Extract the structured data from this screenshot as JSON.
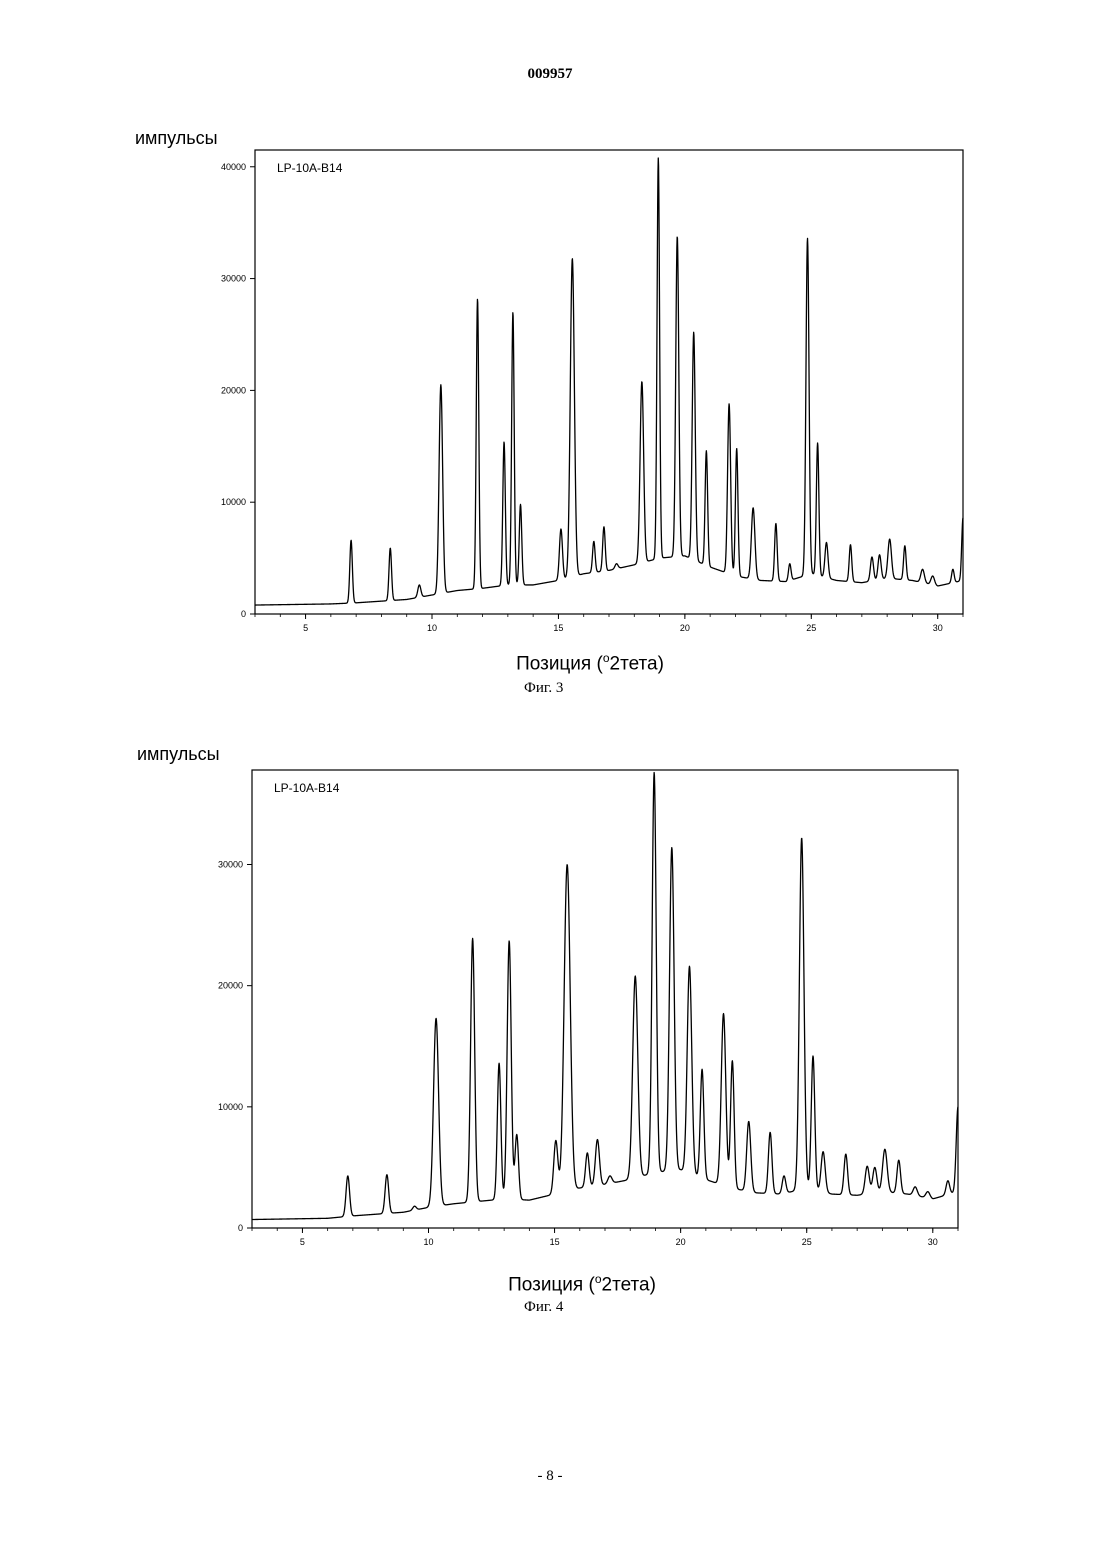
{
  "document": {
    "number": "009957",
    "page": "- 8 -"
  },
  "chart_data": [
    {
      "type": "line",
      "ylabel": "импульсы",
      "xlabel": "Позиция (°2тета)",
      "xlabel_pre": "Позиция (",
      "xlabel_sup": "o",
      "xlabel_post": "2тета)",
      "legend": "LP-10A-B14",
      "caption": "Фиг. 3",
      "xlim": [
        3,
        31
      ],
      "ylim": [
        0,
        41500
      ],
      "xticks": [
        5,
        10,
        15,
        20,
        25,
        30
      ],
      "xtick_labels": [
        "5",
        "10",
        "15",
        "20",
        "25",
        "30"
      ],
      "yticks": [
        0,
        10000,
        20000,
        30000,
        40000
      ],
      "ytick_labels": [
        "0",
        "10000",
        "20000",
        "30000",
        "40000"
      ],
      "baseline": [
        [
          3,
          800
        ],
        [
          6,
          900
        ],
        [
          7,
          1000
        ],
        [
          9,
          1300
        ],
        [
          10,
          1700
        ],
        [
          11,
          2100
        ],
        [
          12,
          2300
        ],
        [
          13,
          2600
        ],
        [
          14,
          2600
        ],
        [
          15,
          3000
        ],
        [
          16,
          3600
        ],
        [
          17,
          3900
        ],
        [
          18,
          4400
        ],
        [
          19,
          5000
        ],
        [
          20,
          5200
        ],
        [
          21,
          4200
        ],
        [
          22,
          3400
        ],
        [
          23,
          3000
        ],
        [
          24,
          2900
        ],
        [
          25,
          3600
        ],
        [
          26,
          3000
        ],
        [
          27,
          2800
        ],
        [
          28,
          3200
        ],
        [
          29,
          3000
        ],
        [
          30,
          2500
        ],
        [
          31,
          3000
        ]
      ],
      "peaks": [
        [
          6.8,
          6600,
          0.05
        ],
        [
          8.35,
          5900,
          0.05
        ],
        [
          9.5,
          2600,
          0.06
        ],
        [
          10.35,
          20500,
          0.07
        ],
        [
          11.8,
          28200,
          0.05
        ],
        [
          12.85,
          15400,
          0.05
        ],
        [
          13.2,
          27000,
          0.05
        ],
        [
          13.5,
          9800,
          0.05
        ],
        [
          15.1,
          7600,
          0.06
        ],
        [
          15.55,
          31800,
          0.08
        ],
        [
          16.4,
          6500,
          0.05
        ],
        [
          16.8,
          7800,
          0.05
        ],
        [
          17.3,
          4500,
          0.06
        ],
        [
          18.3,
          20800,
          0.07
        ],
        [
          18.95,
          40800,
          0.05
        ],
        [
          19.7,
          33800,
          0.06
        ],
        [
          20.35,
          25200,
          0.06
        ],
        [
          20.85,
          14600,
          0.05
        ],
        [
          21.75,
          18800,
          0.06
        ],
        [
          22.05,
          14800,
          0.05
        ],
        [
          22.7,
          9500,
          0.07
        ],
        [
          23.6,
          8100,
          0.05
        ],
        [
          24.15,
          4500,
          0.05
        ],
        [
          24.85,
          33600,
          0.06
        ],
        [
          25.25,
          15300,
          0.05
        ],
        [
          25.6,
          6400,
          0.06
        ],
        [
          26.55,
          6200,
          0.05
        ],
        [
          27.4,
          5100,
          0.06
        ],
        [
          27.7,
          5300,
          0.06
        ],
        [
          28.1,
          6700,
          0.07
        ],
        [
          28.7,
          6100,
          0.05
        ],
        [
          29.4,
          4000,
          0.07
        ],
        [
          29.8,
          3400,
          0.07
        ],
        [
          30.6,
          4000,
          0.05
        ],
        [
          31.0,
          8600,
          0.05
        ]
      ]
    },
    {
      "type": "line",
      "ylabel": "импульсы",
      "xlabel": "Позиция (°2тета)",
      "xlabel_pre": "Позиция (",
      "xlabel_sup": "o",
      "xlabel_post": "2тета)",
      "legend": "LP-10A-B14",
      "caption": "Фиг. 4",
      "xlim": [
        3,
        31
      ],
      "ylim": [
        0,
        37800
      ],
      "xticks": [
        5,
        10,
        15,
        20,
        25,
        30
      ],
      "xtick_labels": [
        "5",
        "10",
        "15",
        "20",
        "25",
        "30"
      ],
      "yticks": [
        0,
        10000,
        20000,
        30000
      ],
      "ytick_labels": [
        "0",
        "10000",
        "20000",
        "30000"
      ],
      "baseline": [
        [
          3,
          700
        ],
        [
          6,
          800
        ],
        [
          7,
          1000
        ],
        [
          9,
          1300
        ],
        [
          10,
          1700
        ],
        [
          11,
          2000
        ],
        [
          12,
          2200
        ],
        [
          13,
          2400
        ],
        [
          14,
          2300
        ],
        [
          15,
          2800
        ],
        [
          16,
          3300
        ],
        [
          17,
          3600
        ],
        [
          18,
          4000
        ],
        [
          19,
          4600
        ],
        [
          20,
          4800
        ],
        [
          21,
          4000
        ],
        [
          22,
          3300
        ],
        [
          23,
          2900
        ],
        [
          24,
          2800
        ],
        [
          25,
          3300
        ],
        [
          26,
          2800
        ],
        [
          27,
          2700
        ],
        [
          28,
          3000
        ],
        [
          29,
          2800
        ],
        [
          30,
          2400
        ],
        [
          31,
          3000
        ]
      ],
      "peaks": [
        [
          6.8,
          4300,
          0.07
        ],
        [
          8.35,
          4400,
          0.07
        ],
        [
          9.45,
          1800,
          0.07
        ],
        [
          10.3,
          17300,
          0.1
        ],
        [
          11.75,
          23900,
          0.08
        ],
        [
          12.8,
          13600,
          0.07
        ],
        [
          13.2,
          23700,
          0.08
        ],
        [
          13.5,
          7700,
          0.07
        ],
        [
          15.05,
          7200,
          0.08
        ],
        [
          15.5,
          30000,
          0.12
        ],
        [
          16.3,
          6200,
          0.07
        ],
        [
          16.7,
          7300,
          0.08
        ],
        [
          17.2,
          4300,
          0.08
        ],
        [
          18.2,
          20800,
          0.1
        ],
        [
          18.95,
          37600,
          0.08
        ],
        [
          19.65,
          31400,
          0.09
        ],
        [
          20.35,
          21600,
          0.09
        ],
        [
          20.85,
          13100,
          0.07
        ],
        [
          21.7,
          17700,
          0.09
        ],
        [
          22.05,
          13800,
          0.07
        ],
        [
          22.7,
          8800,
          0.08
        ],
        [
          23.55,
          7900,
          0.07
        ],
        [
          24.1,
          4300,
          0.07
        ],
        [
          24.8,
          32200,
          0.09
        ],
        [
          25.25,
          14200,
          0.07
        ],
        [
          25.65,
          6300,
          0.08
        ],
        [
          26.55,
          6100,
          0.07
        ],
        [
          27.4,
          5100,
          0.08
        ],
        [
          27.7,
          5000,
          0.08
        ],
        [
          28.1,
          6500,
          0.09
        ],
        [
          28.65,
          5600,
          0.07
        ],
        [
          29.3,
          3400,
          0.08
        ],
        [
          29.8,
          3000,
          0.08
        ],
        [
          30.6,
          3900,
          0.07
        ],
        [
          31.0,
          10000,
          0.07
        ]
      ]
    }
  ]
}
